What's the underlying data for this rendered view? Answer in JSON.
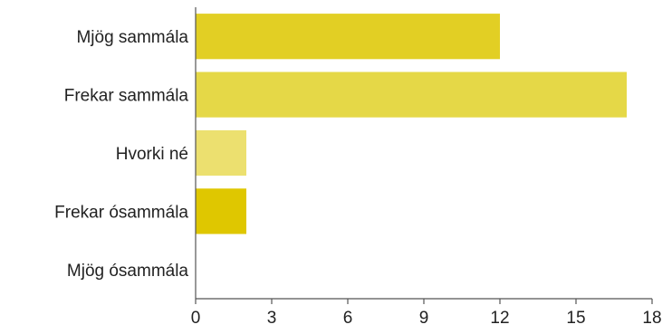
{
  "chart_data": {
    "type": "bar",
    "orientation": "horizontal",
    "categories": [
      "Mjög sammála",
      "Frekar sammála",
      "Hvorki né",
      "Frekar ósammála",
      "Mjög ósammála"
    ],
    "values": [
      12,
      17,
      2,
      2,
      0
    ],
    "bar_colors": [
      "#e2cf24",
      "#e5d847",
      "#ece06f",
      "#dfc700",
      "#d8c200"
    ],
    "xlim": [
      0,
      18
    ],
    "xticks": [
      "0",
      "3",
      "6",
      "9",
      "12",
      "15",
      "18"
    ],
    "grid": false,
    "legend": "none"
  }
}
